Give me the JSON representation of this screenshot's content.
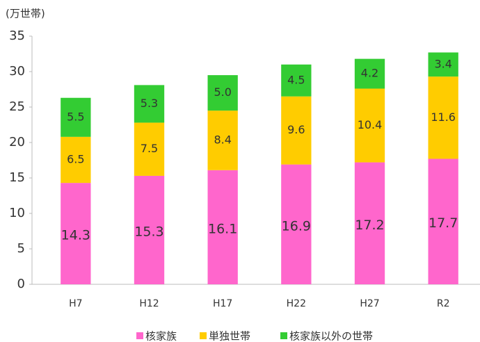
{
  "chart_data": {
    "type": "stacked-bar",
    "y_label": "(万世帯)",
    "categories": [
      "H7",
      "H12",
      "H17",
      "H22",
      "H27",
      "R2"
    ],
    "series": [
      {
        "name": "核家族",
        "color": "#ff66cc",
        "values": [
          14.3,
          15.3,
          16.1,
          16.9,
          17.2,
          17.7
        ],
        "value_labels": [
          "14.3",
          "15.3",
          "16.1",
          "16.9",
          "17.2",
          "17.7"
        ]
      },
      {
        "name": "単独世帯",
        "color": "#ffcc00",
        "values": [
          6.5,
          7.5,
          8.4,
          9.6,
          10.4,
          11.6
        ],
        "value_labels": [
          "6.5",
          "7.5",
          "8.4",
          "9.6",
          "10.4",
          "11.6"
        ]
      },
      {
        "name": "核家族以外の世帯",
        "color": "#33cc33",
        "values": [
          5.5,
          5.3,
          5.0,
          4.5,
          4.2,
          3.4
        ],
        "value_labels": [
          "5.5",
          "5.3",
          "5.0",
          "4.5",
          "4.2",
          "3.4"
        ]
      }
    ],
    "ylim": [
      0,
      35
    ],
    "yticks": [
      0,
      5,
      10,
      15,
      20,
      25,
      30,
      35
    ],
    "grid": false,
    "legend": "bottom"
  }
}
